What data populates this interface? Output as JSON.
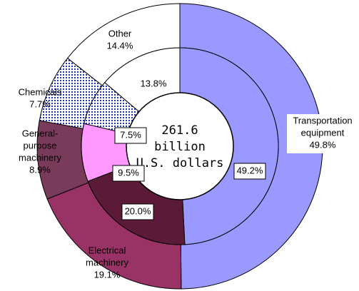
{
  "chart_data": {
    "type": "donut",
    "center_text": [
      "261.6",
      "billion",
      "U.S. dollars"
    ],
    "categories": [
      [
        "Transportation",
        "equipment"
      ],
      [
        "Electrical",
        "machinery"
      ],
      [
        "General-",
        "purpose",
        "machinery"
      ],
      [
        "Chemicals"
      ],
      [
        "Other"
      ]
    ],
    "colors": [
      "#9999ff",
      "#993366",
      "#7a3a5a",
      "#3344cc",
      "#ffffff"
    ],
    "inner_colors": [
      "#9999ff",
      "#5a1a38",
      "#ff99ff",
      "#3344cc",
      "#ffffff"
    ],
    "outer": {
      "values": [
        49.8,
        19.1,
        8.9,
        7.7,
        14.4
      ],
      "value_labels": [
        "49.8%",
        "19.1%",
        "8.9%",
        "7.7%",
        "14.4%"
      ]
    },
    "inner": {
      "values": [
        49.2,
        20.0,
        9.5,
        7.5,
        13.8
      ],
      "value_labels": [
        "49.2%",
        "20.0%",
        "9.5%",
        "7.5%",
        "13.8%"
      ]
    }
  }
}
